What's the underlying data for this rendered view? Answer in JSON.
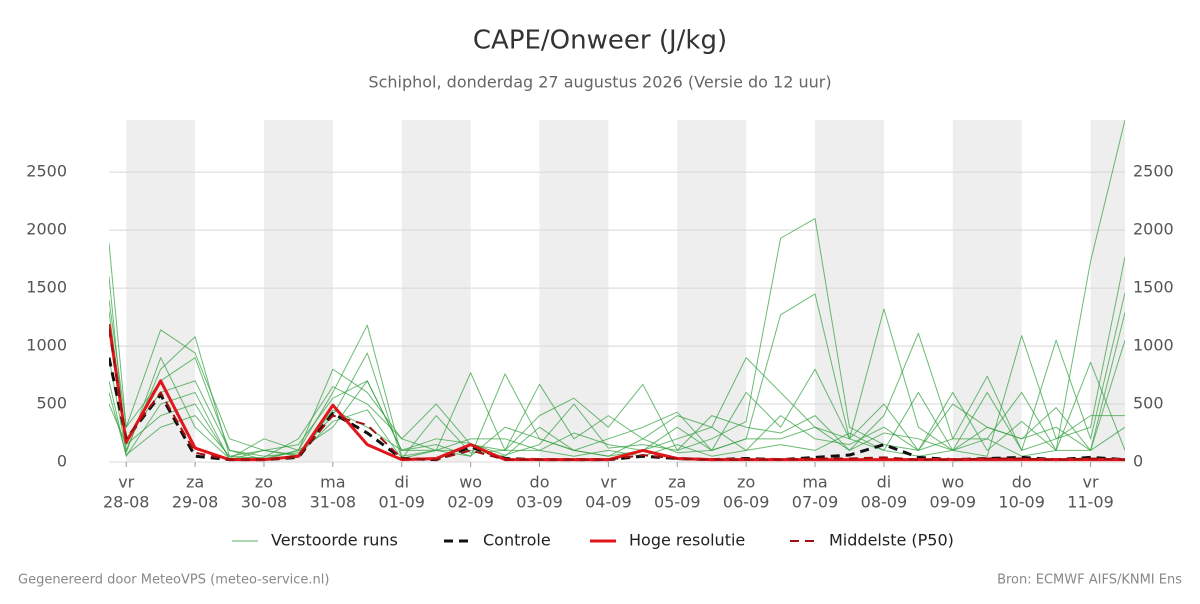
{
  "chart_data": {
    "type": "line",
    "title": "CAPE/Onweer (J/kg)",
    "subtitle": "Schiphol, donderdag 27 augustus 2026 (Versie do 12 uur)",
    "footer_left": "Gegenereerd door MeteoVPS (meteo-service.nl)",
    "footer_right": "Bron: ECMWF AIFS/KNMI Ens",
    "x": [
      -0.25,
      0,
      0.5,
      1,
      1.5,
      2,
      2.5,
      3,
      3.5,
      4,
      4.5,
      5,
      5.5,
      6,
      6.5,
      7,
      7.5,
      8,
      8.5,
      9,
      9.5,
      10,
      10.5,
      11,
      11.5,
      12,
      12.5,
      13,
      13.5,
      14,
      14.5
    ],
    "xlim": [
      -0.25,
      14.5
    ],
    "xticks": [
      {
        "value": 0,
        "label": [
          "vr",
          "28-08"
        ]
      },
      {
        "value": 1,
        "label": [
          "za",
          "29-08"
        ]
      },
      {
        "value": 2,
        "label": [
          "zo",
          "30-08"
        ]
      },
      {
        "value": 3,
        "label": [
          "ma",
          "31-08"
        ]
      },
      {
        "value": 4,
        "label": [
          "di",
          "01-09"
        ]
      },
      {
        "value": 5,
        "label": [
          "wo",
          "02-09"
        ]
      },
      {
        "value": 6,
        "label": [
          "do",
          "03-09"
        ]
      },
      {
        "value": 7,
        "label": [
          "vr",
          "04-09"
        ]
      },
      {
        "value": 8,
        "label": [
          "za",
          "05-09"
        ]
      },
      {
        "value": 9,
        "label": [
          "zo",
          "06-09"
        ]
      },
      {
        "value": 10,
        "label": [
          "ma",
          "07-09"
        ]
      },
      {
        "value": 11,
        "label": [
          "di",
          "08-09"
        ]
      },
      {
        "value": 12,
        "label": [
          "wo",
          "09-09"
        ]
      },
      {
        "value": 13,
        "label": [
          "do",
          "10-09"
        ]
      },
      {
        "value": 14,
        "label": [
          "vr",
          "11-09"
        ]
      }
    ],
    "ylim": [
      0,
      2950
    ],
    "yticks": [
      0,
      500,
      1000,
      1500,
      2000,
      2500
    ],
    "grid": true,
    "right_axis_labels": true,
    "alternate_day_shading": "#eeeeee",
    "legend": "bottom",
    "ensemble": {
      "name": "Verstoorde runs",
      "color": "#2e9e3a",
      "members": [
        [
          1890,
          300,
          1140,
          940,
          200,
          100,
          150,
          550,
          700,
          100,
          200,
          160,
          60,
          150,
          500,
          120,
          150,
          100,
          200,
          350,
          1930,
          2100,
          300,
          150,
          100,
          600,
          100,
          350,
          100,
          1730,
          2950
        ],
        [
          1600,
          100,
          800,
          1080,
          50,
          30,
          100,
          600,
          1180,
          50,
          100,
          50,
          760,
          200,
          100,
          50,
          200,
          80,
          100,
          200,
          1270,
          1450,
          200,
          1320,
          300,
          100,
          50,
          1090,
          200,
          300,
          1770
        ],
        [
          1300,
          200,
          600,
          700,
          100,
          50,
          80,
          400,
          940,
          30,
          400,
          80,
          100,
          400,
          550,
          300,
          670,
          100,
          400,
          300,
          250,
          400,
          100,
          400,
          1110,
          200,
          200,
          600,
          100,
          860,
          100
        ],
        [
          900,
          80,
          900,
          300,
          30,
          200,
          100,
          800,
          600,
          200,
          500,
          150,
          100,
          670,
          200,
          400,
          200,
          400,
          300,
          900,
          600,
          300,
          200,
          100,
          600,
          100,
          300,
          200,
          470,
          100,
          1290
        ],
        [
          700,
          50,
          500,
          600,
          20,
          100,
          50,
          450,
          300,
          100,
          100,
          100,
          50,
          300,
          100,
          200,
          300,
          430,
          100,
          600,
          300,
          800,
          200,
          500,
          100,
          200,
          740,
          100,
          1050,
          200,
          1460
        ],
        [
          500,
          150,
          400,
          500,
          30,
          40,
          200,
          650,
          500,
          200,
          100,
          770,
          100,
          100,
          250,
          150,
          100,
          200,
          300,
          100,
          400,
          200,
          150,
          300,
          100,
          500,
          300,
          200,
          300,
          100,
          1050
        ],
        [
          1400,
          300,
          700,
          900,
          100,
          20,
          100,
          300,
          700,
          100,
          150,
          50,
          300,
          200,
          100,
          50,
          100,
          300,
          100,
          200,
          200,
          300,
          100,
          250,
          200,
          100,
          600,
          100,
          200,
          400,
          400
        ],
        [
          600,
          60,
          300,
          400,
          50,
          100,
          60,
          350,
          450,
          30,
          100,
          200,
          200,
          100,
          50,
          100,
          50,
          150,
          50,
          100,
          150,
          100,
          250,
          100,
          50,
          100,
          200,
          50,
          100,
          100,
          300
        ]
      ]
    },
    "series": [
      {
        "name": "Controle",
        "color": "#111111",
        "dashed": true,
        "width": 3,
        "values": [
          900,
          200,
          580,
          50,
          20,
          20,
          40,
          420,
          250,
          30,
          20,
          130,
          30,
          20,
          20,
          20,
          50,
          30,
          20,
          30,
          20,
          40,
          60,
          150,
          40,
          20,
          30,
          40,
          20,
          40,
          20
        ]
      },
      {
        "name": "Hoge resolutie",
        "color": "#e0161a",
        "dashed": false,
        "width": 3,
        "values": [
          1190,
          170,
          700,
          120,
          20,
          20,
          50,
          490,
          150,
          20,
          30,
          150,
          20,
          20,
          20,
          20,
          100,
          30,
          20,
          20,
          20,
          20,
          20,
          20,
          20,
          20,
          20,
          20,
          20,
          20,
          20
        ]
      },
      {
        "name": "Middelste (P50)",
        "color": "#a01010",
        "dashed": true,
        "width": 2,
        "values": [
          1150,
          200,
          600,
          80,
          20,
          20,
          50,
          400,
          320,
          30,
          20,
          100,
          20,
          20,
          20,
          20,
          60,
          30,
          20,
          20,
          20,
          30,
          30,
          40,
          20,
          20,
          30,
          30,
          20,
          30,
          20
        ]
      }
    ]
  }
}
